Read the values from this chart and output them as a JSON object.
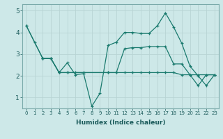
{
  "title": "",
  "xlabel": "Humidex (Indice chaleur)",
  "xlim": [
    -0.5,
    23.5
  ],
  "ylim": [
    0.5,
    5.3
  ],
  "yticks": [
    1,
    2,
    3,
    4,
    5
  ],
  "xticks": [
    0,
    1,
    2,
    3,
    4,
    5,
    6,
    7,
    8,
    9,
    10,
    11,
    12,
    13,
    14,
    15,
    16,
    17,
    18,
    19,
    20,
    21,
    22,
    23
  ],
  "bg_color": "#cde8e8",
  "grid_color": "#b8d4d4",
  "line_color": "#1a7a6e",
  "lines": [
    {
      "x": [
        0,
        1,
        2,
        3,
        4,
        5,
        6,
        7,
        8,
        9,
        10,
        11,
        12,
        13,
        14,
        15,
        16,
        17,
        18,
        19,
        20,
        21,
        22,
        23
      ],
      "y": [
        4.3,
        3.55,
        2.8,
        2.8,
        2.15,
        2.6,
        2.05,
        2.1,
        0.6,
        1.2,
        3.4,
        3.55,
        4.0,
        4.0,
        3.95,
        3.95,
        4.3,
        4.9,
        4.25,
        3.5,
        2.45,
        2.0,
        1.55,
        2.05
      ]
    },
    {
      "x": [
        0,
        2,
        3,
        4,
        5,
        10,
        11,
        12,
        13,
        14,
        15,
        16,
        17,
        18,
        19,
        20,
        21,
        22,
        23
      ],
      "y": [
        4.3,
        2.8,
        2.8,
        2.15,
        2.15,
        2.15,
        2.15,
        3.25,
        3.3,
        3.3,
        3.35,
        3.35,
        3.35,
        2.55,
        2.55,
        2.05,
        2.05,
        2.05,
        2.05
      ]
    },
    {
      "x": [
        2,
        3,
        4,
        5,
        6,
        7,
        10,
        11,
        12,
        13,
        14,
        15,
        16,
        17,
        18,
        19,
        20,
        21,
        22,
        23
      ],
      "y": [
        2.8,
        2.8,
        2.15,
        2.15,
        2.15,
        2.15,
        2.15,
        2.15,
        2.15,
        2.15,
        2.15,
        2.15,
        2.15,
        2.15,
        2.15,
        2.05,
        2.05,
        1.55,
        2.05,
        2.05
      ]
    }
  ]
}
